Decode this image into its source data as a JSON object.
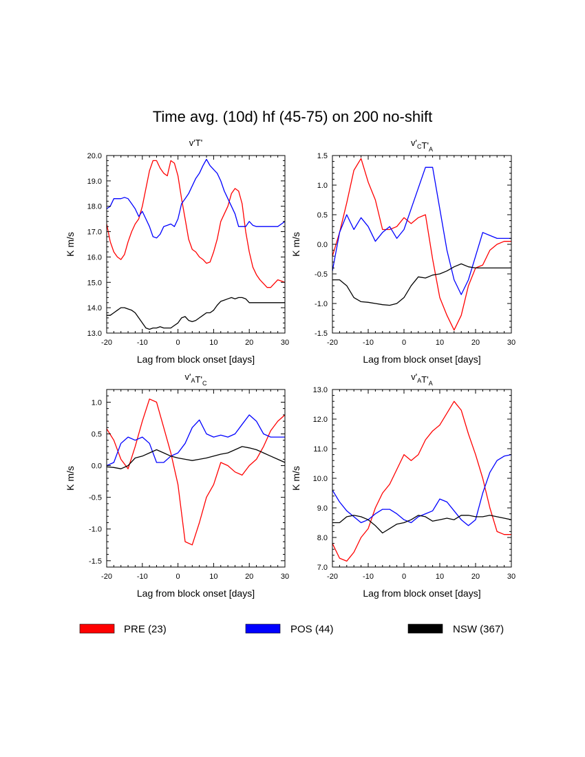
{
  "figure": {
    "title": "Time avg. (10d) hf (45-75) on 200 no-shift"
  },
  "legend": [
    {
      "label": "PRE (23)",
      "color": "#ff0000"
    },
    {
      "label": "POS (44)",
      "color": "#0000ff"
    },
    {
      "label": "NSW (367)",
      "color": "#000000"
    }
  ],
  "chart_data": [
    {
      "type": "line",
      "title": "v'T'",
      "title_parts": [
        {
          "t": "v'T'",
          "sub": ""
        }
      ],
      "xlabel": "Lag from block onset [days]",
      "ylabel": "K m/s",
      "xlim": [
        -20,
        30
      ],
      "ylim": [
        13.0,
        20.0
      ],
      "xticks": [
        -20,
        -10,
        0,
        10,
        20,
        30
      ],
      "xtick_labels": [
        "-20",
        "-10",
        "0",
        "10",
        "20",
        "30"
      ],
      "yticks": [
        13,
        14,
        15,
        16,
        17,
        18,
        19,
        20
      ],
      "ytick_labels": [
        "13.0",
        "14.0",
        "15.0",
        "16.0",
        "17.0",
        "18.0",
        "19.0",
        "20.0"
      ],
      "grid": false,
      "x": [
        -20,
        -19,
        -18,
        -17,
        -16,
        -15,
        -14,
        -13,
        -12,
        -11,
        -10,
        -9,
        -8,
        -7,
        -6,
        -5,
        -4,
        -3,
        -2,
        -1,
        0,
        1,
        2,
        3,
        4,
        5,
        6,
        7,
        8,
        9,
        10,
        11,
        12,
        13,
        14,
        15,
        16,
        17,
        18,
        19,
        20,
        21,
        22,
        23,
        24,
        25,
        26,
        27,
        28,
        29,
        30
      ],
      "series": [
        {
          "name": "PRE (23)",
          "color": "#ff0000",
          "values": [
            17.3,
            16.6,
            16.2,
            16.0,
            15.9,
            16.1,
            16.6,
            17.0,
            17.3,
            17.5,
            18.0,
            18.7,
            19.4,
            19.8,
            19.8,
            19.5,
            19.3,
            19.2,
            19.8,
            19.7,
            19.2,
            18.3,
            17.5,
            16.7,
            16.3,
            16.2,
            16.0,
            15.9,
            15.75,
            15.8,
            16.2,
            16.7,
            17.4,
            17.7,
            18.0,
            18.5,
            18.7,
            18.6,
            18.1,
            17.0,
            16.2,
            15.6,
            15.3,
            15.1,
            14.95,
            14.8,
            14.8,
            14.95,
            15.1,
            15.05,
            15.0
          ]
        },
        {
          "name": "POS (44)",
          "color": "#0000ff",
          "values": [
            17.9,
            18.0,
            18.3,
            18.3,
            18.3,
            18.35,
            18.3,
            18.1,
            17.9,
            17.6,
            17.8,
            17.5,
            17.2,
            16.8,
            16.75,
            16.9,
            17.2,
            17.25,
            17.3,
            17.2,
            17.5,
            18.1,
            18.3,
            18.5,
            18.8,
            19.1,
            19.3,
            19.6,
            19.85,
            19.6,
            19.45,
            19.3,
            19.0,
            18.6,
            18.3,
            18.0,
            17.7,
            17.2,
            17.2,
            17.2,
            17.4,
            17.25,
            17.2,
            17.2,
            17.2,
            17.2,
            17.2,
            17.2,
            17.2,
            17.3,
            17.4
          ]
        },
        {
          "name": "NSW (367)",
          "color": "#000000",
          "values": [
            13.7,
            13.7,
            13.8,
            13.9,
            14.0,
            14.0,
            13.95,
            13.9,
            13.8,
            13.6,
            13.4,
            13.2,
            13.15,
            13.2,
            13.2,
            13.25,
            13.2,
            13.2,
            13.2,
            13.3,
            13.4,
            13.6,
            13.65,
            13.5,
            13.45,
            13.5,
            13.6,
            13.7,
            13.8,
            13.8,
            13.9,
            14.1,
            14.25,
            14.3,
            14.35,
            14.4,
            14.35,
            14.4,
            14.4,
            14.35,
            14.2,
            14.2,
            14.2,
            14.2,
            14.2,
            14.2,
            14.2,
            14.2,
            14.2,
            14.2,
            14.2
          ]
        }
      ]
    },
    {
      "type": "line",
      "title": "v'CT'A",
      "title_parts": [
        {
          "t": "v'",
          "sub": "C"
        },
        {
          "t": "T'",
          "sub": "A"
        }
      ],
      "xlabel": "Lag from block onset [days]",
      "ylabel": "K m/s",
      "xlim": [
        -20,
        30
      ],
      "ylim": [
        -1.5,
        1.5
      ],
      "xticks": [
        -20,
        -10,
        0,
        10,
        20,
        30
      ],
      "xtick_labels": [
        "-20",
        "-10",
        "0",
        "10",
        "20",
        "30"
      ],
      "yticks": [
        -1.5,
        -1.0,
        -0.5,
        0.0,
        0.5,
        1.0,
        1.5
      ],
      "ytick_labels": [
        "-1.5",
        "-1.0",
        "-0.5",
        "0.0",
        "0.5",
        "1.0",
        "1.5"
      ],
      "grid": false,
      "x": [
        -20,
        -18,
        -16,
        -14,
        -12,
        -10,
        -8,
        -6,
        -4,
        -2,
        0,
        2,
        4,
        6,
        8,
        10,
        12,
        14,
        16,
        18,
        20,
        22,
        24,
        26,
        28,
        30
      ],
      "series": [
        {
          "name": "PRE (23)",
          "color": "#ff0000",
          "values": [
            -0.2,
            0.2,
            0.7,
            1.25,
            1.45,
            1.05,
            0.75,
            0.25,
            0.25,
            0.3,
            0.45,
            0.35,
            0.45,
            0.5,
            -0.25,
            -0.9,
            -1.2,
            -1.45,
            -1.2,
            -0.7,
            -0.4,
            -0.35,
            -0.1,
            0.0,
            0.05,
            0.05
          ]
        },
        {
          "name": "POS (44)",
          "color": "#0000ff",
          "values": [
            -0.45,
            0.2,
            0.5,
            0.25,
            0.45,
            0.3,
            0.05,
            0.2,
            0.3,
            0.1,
            0.25,
            0.6,
            0.95,
            1.3,
            1.3,
            0.6,
            -0.1,
            -0.6,
            -0.85,
            -0.6,
            -0.2,
            0.2,
            0.15,
            0.1,
            0.1,
            0.1
          ]
        },
        {
          "name": "NSW (367)",
          "color": "#000000",
          "values": [
            -0.6,
            -0.6,
            -0.7,
            -0.9,
            -0.97,
            -0.98,
            -1.0,
            -1.02,
            -1.03,
            -1.0,
            -0.9,
            -0.7,
            -0.55,
            -0.57,
            -0.52,
            -0.5,
            -0.45,
            -0.38,
            -0.33,
            -0.38,
            -0.4,
            -0.4,
            -0.4,
            -0.4,
            -0.4,
            -0.4
          ]
        }
      ]
    },
    {
      "type": "line",
      "title": "v'AT'C",
      "title_parts": [
        {
          "t": "v'",
          "sub": "A"
        },
        {
          "t": "T'",
          "sub": "C"
        }
      ],
      "xlabel": "Lag from block onset [days]",
      "ylabel": "K m/s",
      "xlim": [
        -20,
        30
      ],
      "ylim": [
        -1.6,
        1.2
      ],
      "xticks": [
        -20,
        -10,
        0,
        10,
        20,
        30
      ],
      "xtick_labels": [
        "-20",
        "-10",
        "0",
        "10",
        "20",
        "30"
      ],
      "yticks": [
        -1.5,
        -1.0,
        -0.5,
        0.0,
        0.5,
        1.0
      ],
      "ytick_labels": [
        "-1.5",
        "-1.0",
        "-0.5",
        "0.0",
        "0.5",
        "1.0"
      ],
      "grid": false,
      "x": [
        -20,
        -18,
        -16,
        -14,
        -12,
        -10,
        -8,
        -6,
        -4,
        -2,
        0,
        2,
        4,
        6,
        8,
        10,
        12,
        14,
        16,
        18,
        20,
        22,
        24,
        26,
        28,
        30
      ],
      "series": [
        {
          "name": "PRE (23)",
          "color": "#ff0000",
          "values": [
            0.58,
            0.4,
            0.1,
            -0.05,
            0.3,
            0.7,
            1.05,
            1.0,
            0.6,
            0.2,
            -0.3,
            -1.2,
            -1.25,
            -0.9,
            -0.5,
            -0.3,
            0.05,
            0.0,
            -0.1,
            -0.15,
            0.0,
            0.1,
            0.3,
            0.55,
            0.7,
            0.8
          ]
        },
        {
          "name": "POS (44)",
          "color": "#0000ff",
          "values": [
            0.0,
            0.05,
            0.35,
            0.45,
            0.4,
            0.45,
            0.35,
            0.05,
            0.05,
            0.15,
            0.2,
            0.35,
            0.6,
            0.72,
            0.5,
            0.45,
            0.48,
            0.45,
            0.5,
            0.65,
            0.8,
            0.7,
            0.5,
            0.45,
            0.45,
            0.45
          ]
        },
        {
          "name": "NSW (367)",
          "color": "#000000",
          "values": [
            -0.02,
            -0.03,
            -0.05,
            0.0,
            0.12,
            0.15,
            0.2,
            0.25,
            0.2,
            0.15,
            0.12,
            0.1,
            0.08,
            0.1,
            0.12,
            0.15,
            0.18,
            0.2,
            0.25,
            0.3,
            0.28,
            0.25,
            0.2,
            0.15,
            0.1,
            0.05
          ]
        }
      ]
    },
    {
      "type": "line",
      "title": "v'AT'A",
      "title_parts": [
        {
          "t": "v'",
          "sub": "A"
        },
        {
          "t": "T'",
          "sub": "A"
        }
      ],
      "xlabel": "Lag from block onset [days]",
      "ylabel": "K m/s",
      "xlim": [
        -20,
        30
      ],
      "ylim": [
        7.0,
        13.0
      ],
      "xticks": [
        -20,
        -10,
        0,
        10,
        20,
        30
      ],
      "xtick_labels": [
        "-20",
        "-10",
        "0",
        "10",
        "20",
        "30"
      ],
      "yticks": [
        7,
        8,
        9,
        10,
        11,
        12,
        13
      ],
      "ytick_labels": [
        "7.0",
        "8.0",
        "9.0",
        "10.0",
        "11.0",
        "12.0",
        "13.0"
      ],
      "grid": false,
      "x": [
        -20,
        -18,
        -16,
        -14,
        -12,
        -10,
        -8,
        -6,
        -4,
        -2,
        0,
        2,
        4,
        6,
        8,
        10,
        12,
        14,
        16,
        18,
        20,
        22,
        24,
        26,
        28,
        30
      ],
      "series": [
        {
          "name": "PRE (23)",
          "color": "#ff0000",
          "values": [
            7.8,
            7.3,
            7.2,
            7.5,
            8.0,
            8.3,
            9.0,
            9.5,
            9.8,
            10.3,
            10.8,
            10.6,
            10.8,
            11.3,
            11.6,
            11.8,
            12.2,
            12.6,
            12.3,
            11.5,
            10.8,
            10.0,
            9.0,
            8.2,
            8.1,
            8.1
          ]
        },
        {
          "name": "POS (44)",
          "color": "#0000ff",
          "values": [
            9.6,
            9.2,
            8.9,
            8.7,
            8.5,
            8.6,
            8.8,
            8.95,
            8.95,
            8.8,
            8.6,
            8.5,
            8.7,
            8.8,
            8.9,
            9.3,
            9.2,
            8.9,
            8.6,
            8.4,
            8.6,
            9.5,
            10.2,
            10.6,
            10.75,
            10.8
          ]
        },
        {
          "name": "NSW (367)",
          "color": "#000000",
          "values": [
            8.5,
            8.5,
            8.7,
            8.75,
            8.7,
            8.6,
            8.4,
            8.15,
            8.3,
            8.45,
            8.5,
            8.6,
            8.75,
            8.7,
            8.55,
            8.6,
            8.65,
            8.6,
            8.75,
            8.75,
            8.7,
            8.7,
            8.75,
            8.7,
            8.65,
            8.6
          ]
        }
      ]
    }
  ]
}
